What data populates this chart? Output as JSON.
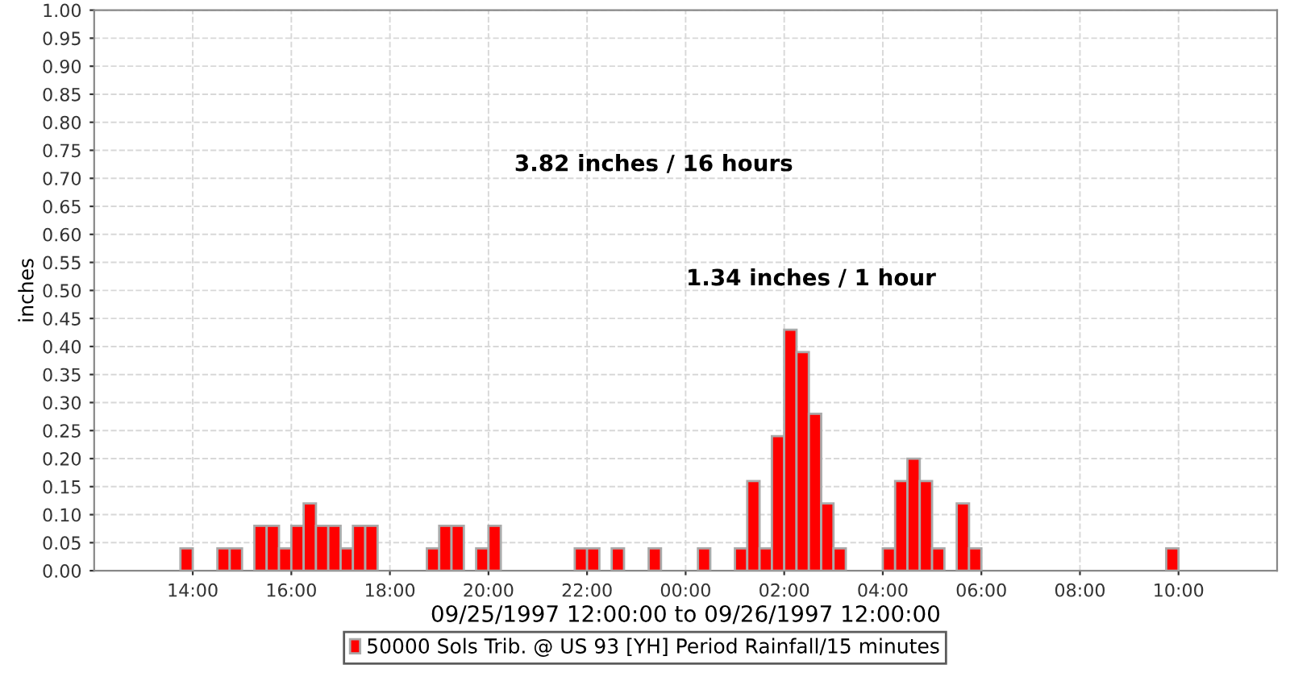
{
  "chart_data": {
    "type": "bar",
    "xlabel": "09/25/1997 12:00:00 to 09/26/1997 12:00:00",
    "ylabel": "inches",
    "x": [
      "1997-09-25T13:45",
      "1997-09-25T14:30",
      "1997-09-25T14:45",
      "1997-09-25T15:15",
      "1997-09-25T15:30",
      "1997-09-25T15:45",
      "1997-09-25T16:00",
      "1997-09-25T16:15",
      "1997-09-25T16:30",
      "1997-09-25T16:45",
      "1997-09-25T17:00",
      "1997-09-25T17:15",
      "1997-09-25T17:30",
      "1997-09-25T18:45",
      "1997-09-25T19:00",
      "1997-09-25T19:15",
      "1997-09-25T19:45",
      "1997-09-25T20:00",
      "1997-09-25T21:45",
      "1997-09-25T22:00",
      "1997-09-25T22:30",
      "1997-09-25T23:15",
      "1997-09-26T00:15",
      "1997-09-26T01:00",
      "1997-09-26T01:15",
      "1997-09-26T01:30",
      "1997-09-26T01:45",
      "1997-09-26T02:00",
      "1997-09-26T02:15",
      "1997-09-26T02:30",
      "1997-09-26T02:45",
      "1997-09-26T03:00",
      "1997-09-26T04:00",
      "1997-09-26T04:15",
      "1997-09-26T04:30",
      "1997-09-26T04:45",
      "1997-09-26T05:00",
      "1997-09-26T05:30",
      "1997-09-26T05:45",
      "1997-09-26T09:45"
    ],
    "series": [
      {
        "name": "50000 Sols Trib. @ US 93 [YH] Period Rainfall/15 minutes",
        "color": "#ff0000",
        "values": [
          0.04,
          0.04,
          0.04,
          0.08,
          0.08,
          0.04,
          0.08,
          0.12,
          0.08,
          0.08,
          0.04,
          0.08,
          0.08,
          0.04,
          0.08,
          0.08,
          0.04,
          0.08,
          0.04,
          0.04,
          0.04,
          0.04,
          0.04,
          0.04,
          0.16,
          0.04,
          0.24,
          0.43,
          0.39,
          0.28,
          0.12,
          0.04,
          0.04,
          0.16,
          0.2,
          0.16,
          0.04,
          0.12,
          0.04,
          0.04
        ]
      }
    ],
    "xlim": [
      "1997-09-25T12:00",
      "1997-09-26T12:00"
    ],
    "xticks": [
      {
        "value": "1997-09-25T14:00",
        "label": "14:00"
      },
      {
        "value": "1997-09-25T16:00",
        "label": "16:00"
      },
      {
        "value": "1997-09-25T18:00",
        "label": "18:00"
      },
      {
        "value": "1997-09-25T20:00",
        "label": "20:00"
      },
      {
        "value": "1997-09-25T22:00",
        "label": "22:00"
      },
      {
        "value": "1997-09-26T00:00",
        "label": "00:00"
      },
      {
        "value": "1997-09-26T02:00",
        "label": "02:00"
      },
      {
        "value": "1997-09-26T04:00",
        "label": "04:00"
      },
      {
        "value": "1997-09-26T06:00",
        "label": "06:00"
      },
      {
        "value": "1997-09-26T08:00",
        "label": "08:00"
      },
      {
        "value": "1997-09-26T10:00",
        "label": "10:00"
      }
    ],
    "ylim": [
      0,
      1.0
    ],
    "yticks": [
      {
        "value": 0,
        "label": "0.00"
      },
      {
        "value": 0.05,
        "label": "0.05"
      },
      {
        "value": 0.1,
        "label": "0.10"
      },
      {
        "value": 0.15,
        "label": "0.15"
      },
      {
        "value": 0.2,
        "label": "0.20"
      },
      {
        "value": 0.25,
        "label": "0.25"
      },
      {
        "value": 0.3,
        "label": "0.30"
      },
      {
        "value": 0.35,
        "label": "0.35"
      },
      {
        "value": 0.4,
        "label": "0.40"
      },
      {
        "value": 0.45,
        "label": "0.45"
      },
      {
        "value": 0.5,
        "label": "0.50"
      },
      {
        "value": 0.55,
        "label": "0.55"
      },
      {
        "value": 0.6,
        "label": "0.60"
      },
      {
        "value": 0.65,
        "label": "0.65"
      },
      {
        "value": 0.7,
        "label": "0.70"
      },
      {
        "value": 0.75,
        "label": "0.75"
      },
      {
        "value": 0.8,
        "label": "0.80"
      },
      {
        "value": 0.85,
        "label": "0.85"
      },
      {
        "value": 0.9,
        "label": "0.90"
      },
      {
        "value": 0.95,
        "label": "0.95"
      },
      {
        "value": 1.0,
        "label": "1.00"
      }
    ],
    "annotations": [
      "3.82 inches / 16 hours",
      "1.34 inches / 1 hour"
    ],
    "grid": true,
    "legend": "bottom"
  }
}
